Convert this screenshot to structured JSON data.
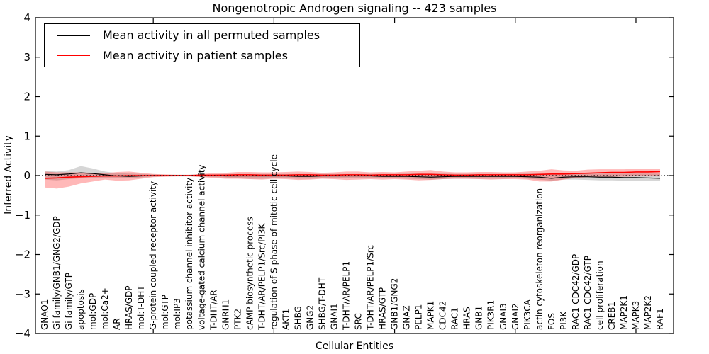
{
  "chart_data": {
    "type": "line",
    "title": "Nongenotropic Androgen signaling -- 423 samples",
    "xlabel": "Cellular Entities",
    "ylabel": "Inferred Activity",
    "ylim": [
      -4,
      4
    ],
    "yticks": [
      -4,
      -3,
      -2,
      -1,
      0,
      1,
      2,
      3,
      4
    ],
    "x_major_tick_indices": [
      9,
      19,
      29,
      39,
      49
    ],
    "grid": false,
    "legend_position": "upper left",
    "zero_line": {
      "style": "dotted",
      "color": "#000000",
      "y": 0
    },
    "legend": [
      {
        "label": "Mean activity in all permuted samples",
        "color": "#000000"
      },
      {
        "label": "Mean activity in patient samples",
        "color": "#ff0000"
      }
    ],
    "categories": [
      "GNAO1",
      "Gi family/GNB1/GNG2/GDP",
      "Gi family/GTP",
      "apoptosis",
      "mol:GDP",
      "mol:Ca2+",
      "AR",
      "HRAS/GDP",
      "mol:T-DHT",
      "G-protein coupled receptor activity",
      "mol:GTP",
      "mol:IP3",
      "potassium channel inhibitor activity",
      "voltage-gated calcium channel activity",
      "T-DHT/AR",
      "GNRH1",
      "PTK2",
      "cAMP biosynthetic process",
      "T-DHT/AR/PELP1/Src/PI3K",
      "regulation of S phase of mitotic cell cycle",
      "AKT1",
      "SHBG",
      "GNG2",
      "SHBG/T-DHT",
      "GNAI1",
      "T-DHT/AR/PELP1",
      "SRC",
      "T-DHT/AR/PELP1/Src",
      "HRAS/GTP",
      "GNB1/GNG2",
      "GNAZ",
      "PELP1",
      "MAPK1",
      "CDC42",
      "RAC1",
      "HRAS",
      "GNB1",
      "PIK3R1",
      "GNAI3",
      "GNAI2",
      "PIK3CA",
      "actin cytoskeleton reorganization",
      "FOS",
      "PI3K",
      "RAC1-CDC42/GDP",
      "RAC1-CDC42/GTP",
      "cell proliferation",
      "CREB1",
      "MAP2K1",
      "MAPK3",
      "MAP2K2",
      "RAF1"
    ],
    "series": [
      {
        "name": "Mean activity in all permuted samples",
        "color": "#000000",
        "values": [
          0.03,
          0.02,
          0.04,
          0.07,
          0.05,
          0.02,
          -0.01,
          -0.02,
          -0.01,
          0,
          0,
          0,
          0,
          0,
          0,
          -0.01,
          -0.01,
          -0.01,
          -0.01,
          -0.01,
          -0.01,
          -0.02,
          -0.02,
          -0.01,
          -0.01,
          -0.01,
          -0.01,
          -0.01,
          -0.02,
          -0.02,
          -0.02,
          -0.03,
          -0.04,
          -0.03,
          -0.02,
          -0.02,
          -0.02,
          -0.02,
          -0.02,
          -0.02,
          -0.03,
          -0.04,
          -0.07,
          -0.04,
          -0.03,
          -0.03,
          -0.04,
          -0.04,
          -0.05,
          -0.05,
          -0.06,
          -0.07
        ]
      },
      {
        "name": "Mean activity in patient samples",
        "color": "#ff0000",
        "values": [
          -0.07,
          -0.06,
          -0.04,
          -0.03,
          -0.02,
          -0.01,
          -0.01,
          0,
          0,
          0,
          0,
          0,
          0,
          0.01,
          0.01,
          0.01,
          0.02,
          0.02,
          0.01,
          0.01,
          0.01,
          0.02,
          0.02,
          0.01,
          0.01,
          0.02,
          0.02,
          0.01,
          0.02,
          0.02,
          0.02,
          0.03,
          0.03,
          0.02,
          0.01,
          0.01,
          0.02,
          0.02,
          0.02,
          0.02,
          0.02,
          0.03,
          0.04,
          0.04,
          0.05,
          0.06,
          0.07,
          0.08,
          0.08,
          0.09,
          0.09,
          0.1
        ]
      }
    ],
    "bands": [
      {
        "name": "permuted samples range",
        "color": "#808080",
        "opacity": 0.32,
        "upper": [
          0.12,
          0.1,
          0.14,
          0.24,
          0.18,
          0.1,
          0.06,
          0.05,
          0.04,
          0.03,
          0.02,
          0.02,
          0.02,
          0.03,
          0.03,
          0.04,
          0.04,
          0.04,
          0.04,
          0.04,
          0.04,
          0.04,
          0.04,
          0.04,
          0.04,
          0.04,
          0.04,
          0.04,
          0.04,
          0.04,
          0.05,
          0.05,
          0.05,
          0.05,
          0.04,
          0.04,
          0.04,
          0.04,
          0.04,
          0.04,
          0.05,
          0.05,
          0.05,
          0.05,
          0.05,
          0.05,
          0.05,
          0.05,
          0.05,
          0.05,
          0.05,
          0.05
        ],
        "lower": [
          -0.1,
          -0.12,
          -0.09,
          -0.07,
          -0.06,
          -0.06,
          -0.06,
          -0.06,
          -0.05,
          -0.03,
          -0.02,
          -0.02,
          -0.02,
          -0.03,
          -0.04,
          -0.05,
          -0.07,
          -0.08,
          -0.08,
          -0.07,
          -0.07,
          -0.08,
          -0.08,
          -0.07,
          -0.06,
          -0.07,
          -0.07,
          -0.06,
          -0.07,
          -0.07,
          -0.08,
          -0.09,
          -0.1,
          -0.09,
          -0.08,
          -0.08,
          -0.08,
          -0.08,
          -0.08,
          -0.07,
          -0.08,
          -0.1,
          -0.13,
          -0.1,
          -0.1,
          -0.11,
          -0.12,
          -0.12,
          -0.13,
          -0.13,
          -0.14,
          -0.14
        ]
      },
      {
        "name": "patient samples range",
        "color": "#ff0000",
        "opacity": 0.28,
        "upper": [
          0.1,
          0.08,
          0.08,
          0.08,
          0.07,
          0.06,
          0.09,
          0.1,
          0.07,
          0.04,
          0.03,
          0.02,
          0.02,
          0.04,
          0.06,
          0.07,
          0.09,
          0.09,
          0.08,
          0.08,
          0.09,
          0.1,
          0.09,
          0.07,
          0.08,
          0.1,
          0.1,
          0.08,
          0.09,
          0.08,
          0.1,
          0.12,
          0.14,
          0.1,
          0.08,
          0.08,
          0.09,
          0.09,
          0.08,
          0.08,
          0.1,
          0.12,
          0.16,
          0.13,
          0.12,
          0.15,
          0.16,
          0.16,
          0.16,
          0.17,
          0.17,
          0.18
        ],
        "lower": [
          -0.3,
          -0.33,
          -0.28,
          -0.2,
          -0.15,
          -0.1,
          -0.13,
          -0.12,
          -0.08,
          -0.04,
          -0.03,
          -0.02,
          -0.02,
          -0.04,
          -0.06,
          -0.08,
          -0.08,
          -0.09,
          -0.1,
          -0.08,
          -0.09,
          -0.11,
          -0.1,
          -0.08,
          -0.09,
          -0.11,
          -0.1,
          -0.09,
          -0.1,
          -0.09,
          -0.1,
          -0.12,
          -0.11,
          -0.09,
          -0.08,
          -0.08,
          -0.09,
          -0.1,
          -0.09,
          -0.09,
          -0.1,
          -0.15,
          -0.15,
          -0.1,
          -0.06,
          -0.04,
          -0.03,
          -0.03,
          -0.03,
          -0.02,
          -0.02,
          -0.02
        ]
      }
    ]
  }
}
